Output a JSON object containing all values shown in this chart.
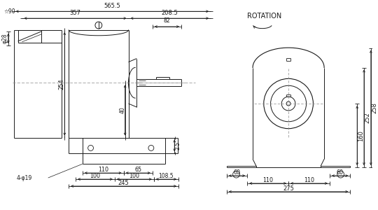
{
  "bg_color": "#ffffff",
  "lc": "#1a1a1a",
  "fs": 6.0,
  "fig_width": 5.4,
  "fig_height": 3.0,
  "dpi": 100,
  "dims_left": {
    "565_5": "565.5",
    "357": "357",
    "208_5": "208.5",
    "82": "82",
    "90": "90",
    "phi28": "φ28",
    "254": "254",
    "40": "40",
    "110a": "110",
    "65": "65",
    "25": "2.5",
    "100a": "100",
    "100b": "100",
    "108_5": "108.5",
    "245": "245",
    "4phi19": "4-φ19"
  },
  "dims_right": {
    "160": "160",
    "252": "252",
    "258": "258",
    "60a": "60",
    "60b": "60",
    "110a": "110",
    "110b": "110",
    "275": "275"
  },
  "rotation_label": "ROTATION"
}
